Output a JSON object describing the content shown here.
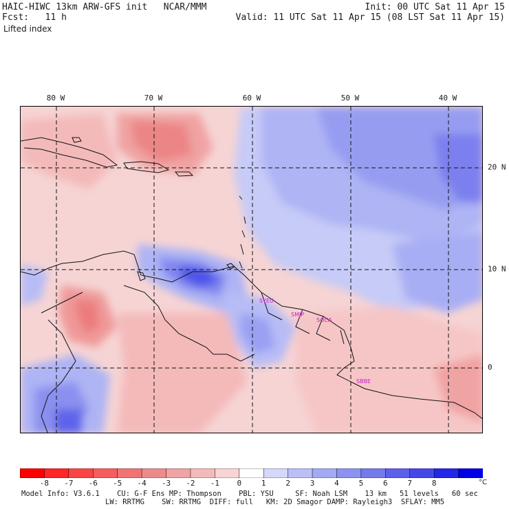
{
  "header": {
    "left_line1": "HAIC-HIWC 13km ARW-GFS init   NCAR/MMM",
    "left_line2": "Fcst:   11 h",
    "left_line3": "Lifted index",
    "right_line1": "Init: 00 UTC Sat 11 Apr 15",
    "right_line2": "Valid: 11 UTC Sat 11 Apr 15 (08 LST Sat 11 Apr 15)"
  },
  "map": {
    "lon_labels": [
      "80 W",
      "70 W",
      "60 W",
      "50 W",
      "40 W"
    ],
    "lat_labels": [
      "20 N",
      "10 N",
      "0"
    ],
    "stations": [
      "SYEU",
      "SMJP",
      "SOCA",
      "SBBE"
    ]
  },
  "colorbar": {
    "ticks": [
      "-8",
      "-7",
      "-6",
      "-5",
      "-4",
      "-3",
      "-2",
      "-1",
      "0",
      "1",
      "2",
      "3",
      "4",
      "5",
      "6",
      "7",
      "8"
    ],
    "unit": "°C",
    "colors": [
      "#ff0000",
      "#ff2626",
      "#fb4545",
      "#f65d5d",
      "#f17474",
      "#ed8b8b",
      "#f0a3a3",
      "#f4baba",
      "#f8d4d4",
      "#ffffff",
      "#d4d8fa",
      "#babff7",
      "#a3a9f3",
      "#8b92f0",
      "#7479ec",
      "#5d60ea",
      "#4548e8",
      "#2626e9",
      "#0000e6"
    ]
  },
  "footer": {
    "line1": "Model Info: V3.6.1    CU: G-F Ens MP: Thompson    PBL: YSU     SF: Noah LSM    13 km   51 levels   60 sec",
    "line2": "LW: RRTMG    SW: RRTMG  DIFF: full   KM: 2D Smagor DAMP: Rayleigh3  SFLAY: MM5"
  }
}
